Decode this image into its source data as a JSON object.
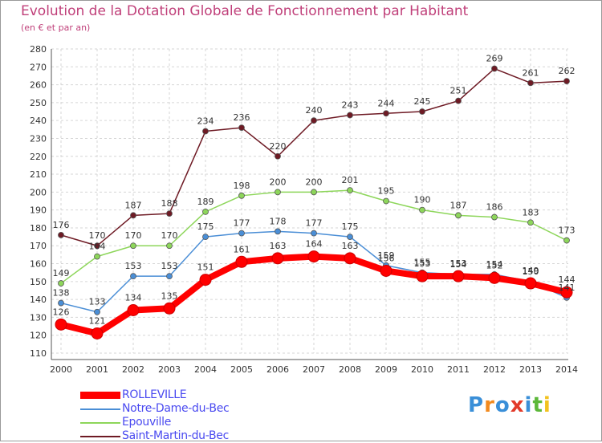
{
  "title": "Evolution de la Dotation Globale de Fonctionnement par Habitant",
  "subtitle": "(en € et par an)",
  "logo": {
    "text": "Proxiti",
    "letters": [
      "P",
      "r",
      "o",
      "x",
      "i",
      "t",
      "i"
    ],
    "colors": [
      "#3a8fd8",
      "#f28a1e",
      "#3a8fd8",
      "#e23a2a",
      "#3a8fd8",
      "#5cb83a",
      "#f2c21e"
    ]
  },
  "chart_data": {
    "type": "line",
    "title": "Evolution de la Dotation Globale de Fonctionnement par Habitant",
    "subtitle": "(en € et par an)",
    "xlabel": "",
    "ylabel": "",
    "ylim": [
      110,
      280
    ],
    "yticks": [
      110,
      120,
      130,
      140,
      150,
      160,
      170,
      180,
      190,
      200,
      210,
      220,
      230,
      240,
      250,
      260,
      270,
      280
    ],
    "categories": [
      "2000",
      "2001",
      "2002",
      "2003",
      "2004",
      "2005",
      "2006",
      "2007",
      "2008",
      "2009",
      "2010",
      "2011",
      "2012",
      "2013",
      "2014"
    ],
    "grid": true,
    "legend_position": "bottom-left",
    "series": [
      {
        "name": "Saint-Martin-du-Bec",
        "color": "#6e1a24",
        "values": [
          176,
          170,
          187,
          188,
          234,
          236,
          220,
          240,
          243,
          244,
          245,
          251,
          269,
          261,
          262
        ],
        "labels": [
          "176",
          "170",
          "187",
          "188",
          "234",
          "236",
          "220",
          "240",
          "243",
          "244",
          "245",
          "251",
          "269",
          "261",
          "262"
        ]
      },
      {
        "name": "Epouville",
        "color": "#8dd65a",
        "values": [
          149,
          164,
          170,
          170,
          189,
          198,
          200,
          200,
          201,
          195,
          190,
          187,
          186,
          183,
          173
        ],
        "labels": [
          "149",
          "164",
          "170",
          "170",
          "189",
          "198",
          "200",
          "200",
          "201",
          "195",
          "190",
          "187",
          "186",
          "183",
          "173"
        ]
      },
      {
        "name": "Notre-Dame-du-Bec",
        "color": "#4a8ed6",
        "values": [
          138,
          133,
          153,
          153,
          175,
          177,
          178,
          177,
          175,
          159,
          155,
          154,
          154,
          150,
          141
        ],
        "labels": [
          "138",
          "133",
          "153",
          "153",
          "175",
          "177",
          "178",
          "177",
          "175",
          "159",
          "155",
          "154",
          "154",
          "150",
          "141"
        ]
      },
      {
        "name": "ROLLEVILLE",
        "color": "#ff0000",
        "values": [
          126,
          121,
          134,
          135,
          151,
          161,
          163,
          164,
          163,
          156,
          153,
          153,
          152,
          149,
          144
        ],
        "labels": [
          "126",
          "121",
          "134",
          "135",
          "151",
          "161",
          "163",
          "164",
          "163",
          "156",
          "153",
          "153",
          "152",
          "149",
          "144"
        ]
      }
    ]
  }
}
